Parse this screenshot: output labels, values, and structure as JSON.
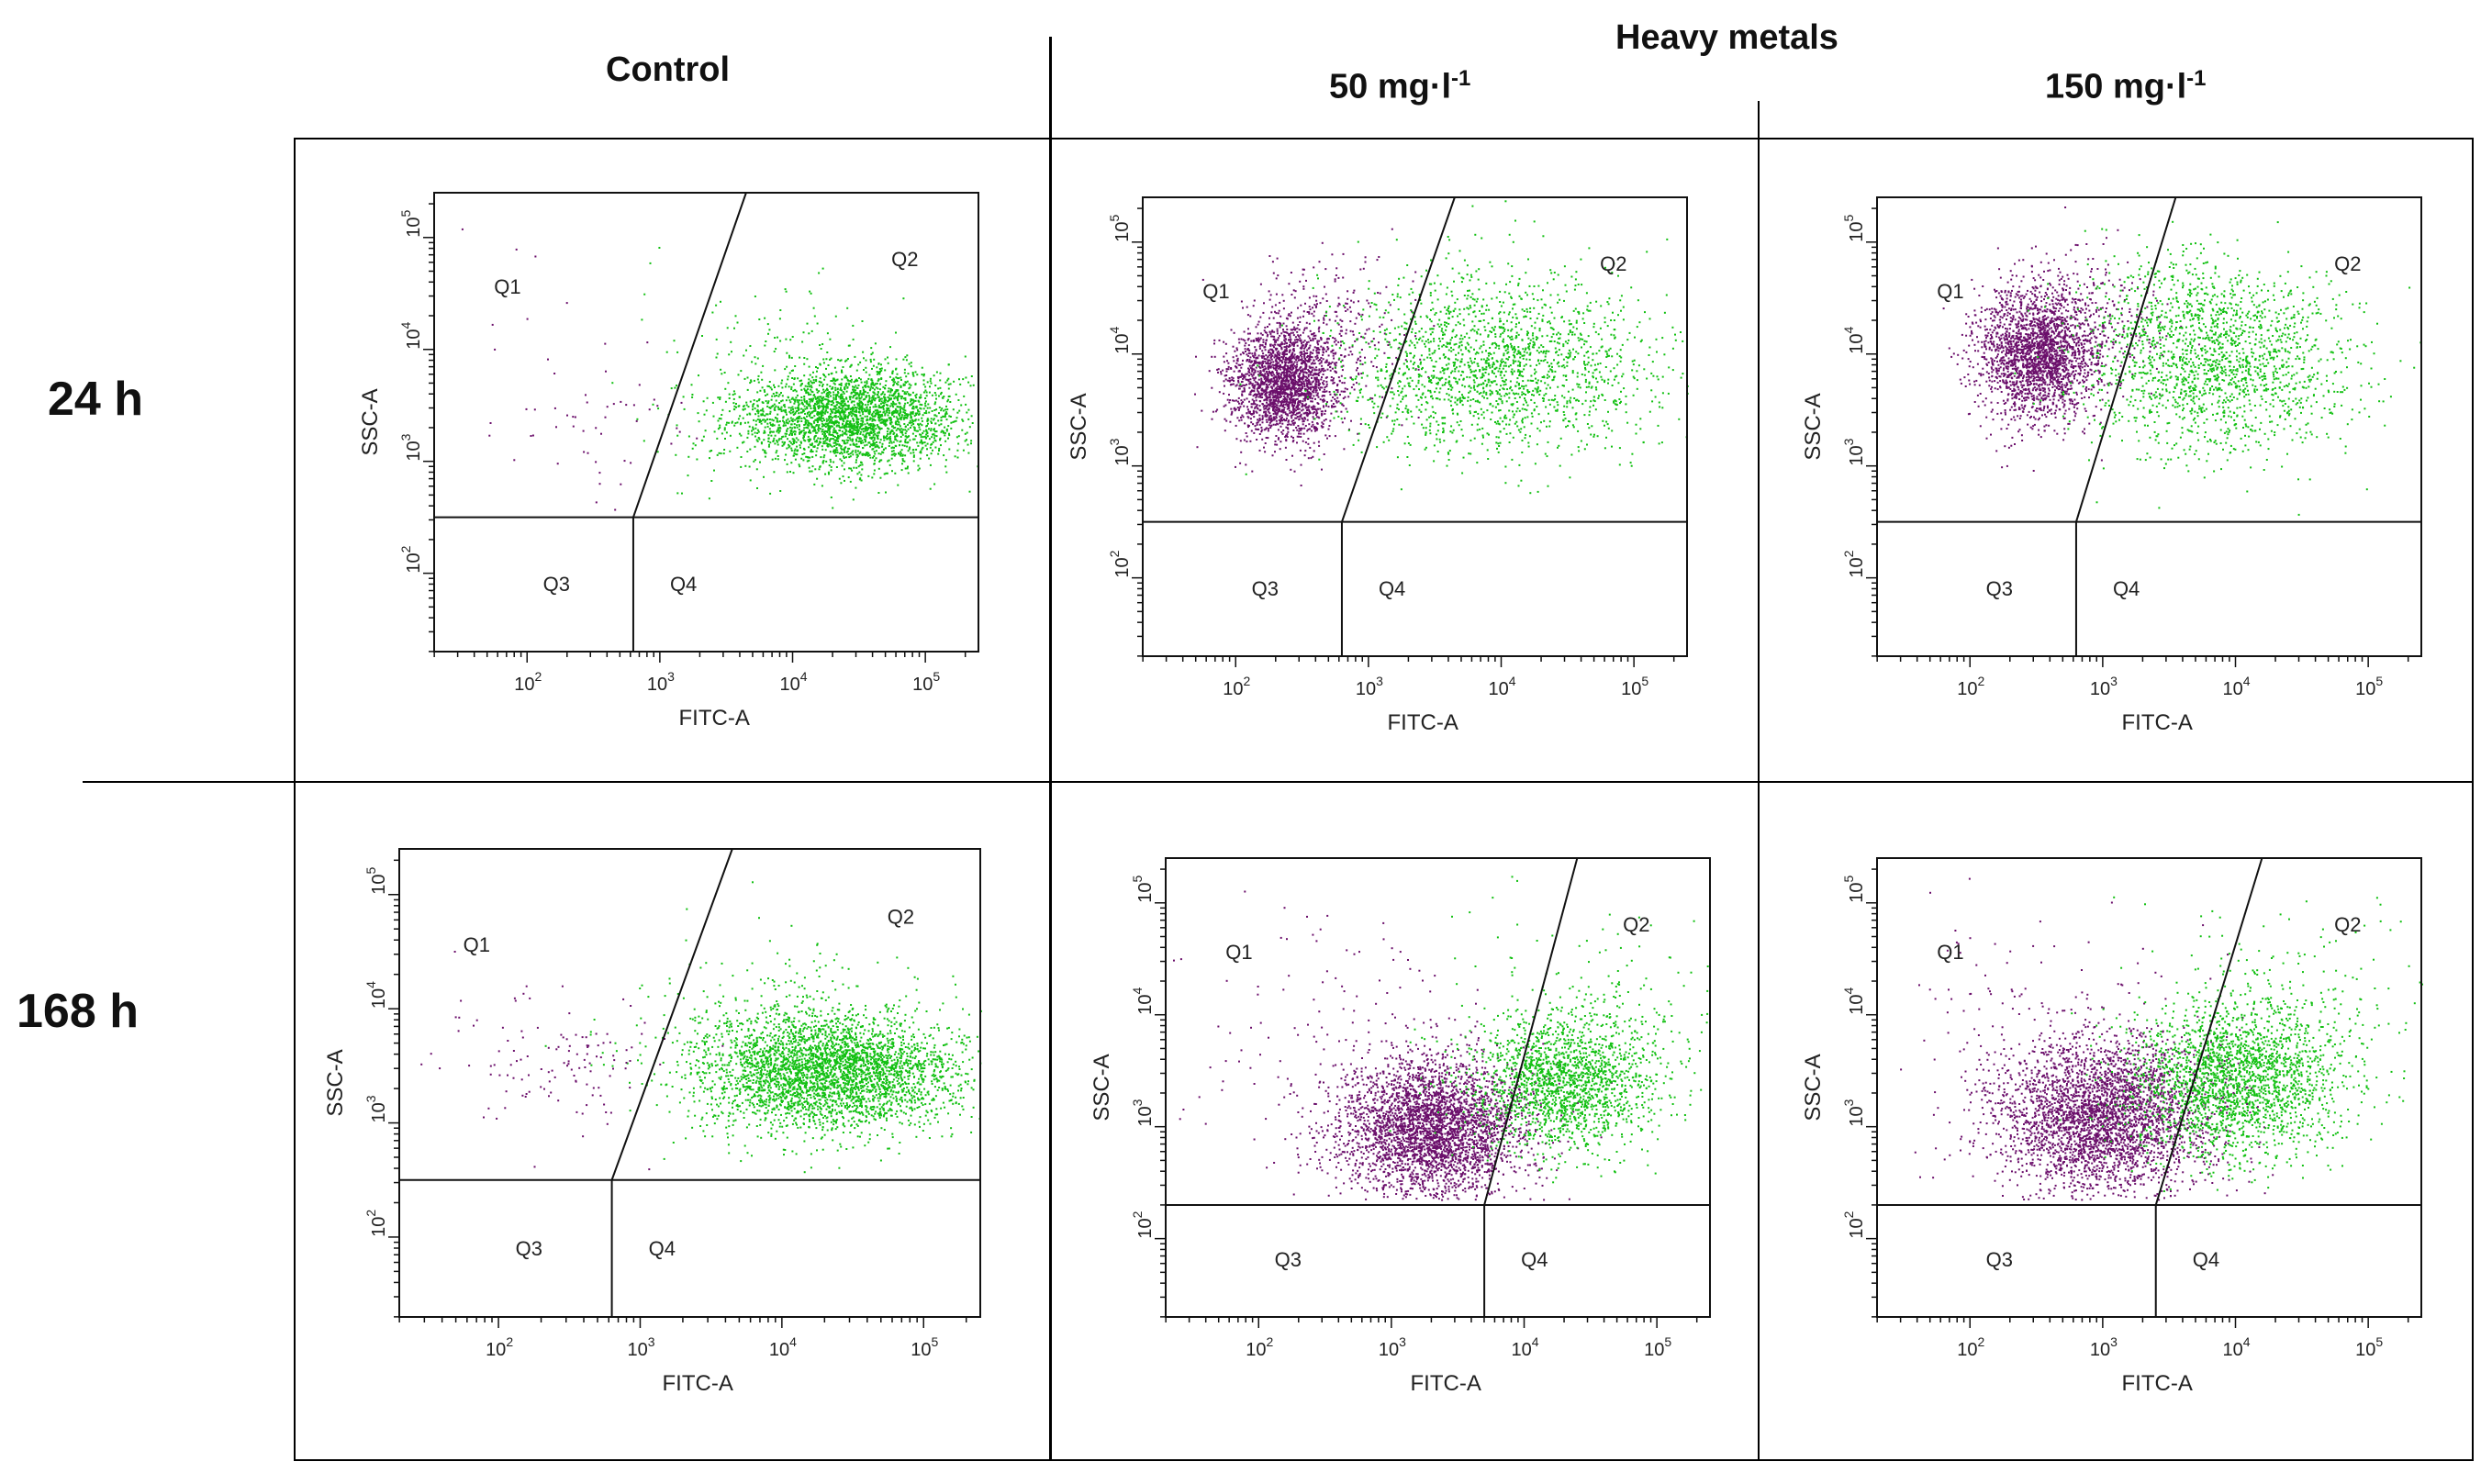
{
  "header": {
    "control": "Control",
    "heavy_metals": "Heavy metals",
    "conc_low_base": "50 mg·l",
    "conc_high_base": "150 mg·l",
    "conc_exp": "-1"
  },
  "rows": {
    "r1": "24 h",
    "r2": "168 h"
  },
  "colors": {
    "q1_population": "#6b0f6b",
    "q2_population": "#12c012",
    "axis": "#111111"
  },
  "chart_data": [
    {
      "id": "ctrl-24h",
      "type": "scatter",
      "title": "Control, 24 h",
      "xlabel": "FITC-A",
      "ylabel": "SSC-A",
      "x_log_range": [
        1.3,
        5.4
      ],
      "y_log_range": [
        1.3,
        5.4
      ],
      "x_ticks": [
        {
          "exp": 2,
          "text": "10",
          "sup": "2"
        },
        {
          "exp": 3,
          "text": "10",
          "sup": "3"
        },
        {
          "exp": 4,
          "text": "10",
          "sup": "4"
        },
        {
          "exp": 5,
          "text": "10",
          "sup": "5"
        }
      ],
      "y_ticks": [
        {
          "exp": 2,
          "text": "10",
          "sup": "2"
        },
        {
          "exp": 3,
          "text": "10",
          "sup": "3"
        },
        {
          "exp": 4,
          "text": "10",
          "sup": "4"
        },
        {
          "exp": 5,
          "text": "10",
          "sup": "5"
        }
      ],
      "quadrant_labels": [
        "Q1",
        "Q2",
        "Q3",
        "Q4"
      ],
      "gates": {
        "x_split": 2.8,
        "y_split": 2.5,
        "diag_top_x": 3.65
      },
      "populations": [
        {
          "class": "Q2",
          "color": "#12c012",
          "cx": 4.45,
          "cy": 3.4,
          "sx": 0.42,
          "sy": 0.22,
          "n": 2600,
          "xmax": 5.45
        },
        {
          "class": "Q2",
          "color": "#12c012",
          "cx": 3.9,
          "cy": 3.6,
          "sx": 0.55,
          "sy": 0.45,
          "n": 260
        },
        {
          "class": "Q1",
          "color": "#6b0f6b",
          "cx": 2.6,
          "cy": 3.4,
          "sx": 0.35,
          "sy": 0.3,
          "n": 45
        },
        {
          "class": "Q1",
          "color": "#6b0f6b",
          "cx": 1.9,
          "cy": 4.0,
          "sx": 0.3,
          "sy": 0.6,
          "n": 14
        }
      ]
    },
    {
      "id": "hm50-24h",
      "type": "scatter",
      "title": "50 mg·l-1, 24 h",
      "xlabel": "FITC-A",
      "ylabel": "SSC-A",
      "x_log_range": [
        1.3,
        5.4
      ],
      "y_log_range": [
        1.3,
        5.4
      ],
      "x_ticks": [
        {
          "exp": 2,
          "text": "10",
          "sup": "2"
        },
        {
          "exp": 3,
          "text": "10",
          "sup": "3"
        },
        {
          "exp": 4,
          "text": "10",
          "sup": "4"
        },
        {
          "exp": 5,
          "text": "10",
          "sup": "5"
        }
      ],
      "y_ticks": [
        {
          "exp": 2,
          "text": "10",
          "sup": "2"
        },
        {
          "exp": 3,
          "text": "10",
          "sup": "3"
        },
        {
          "exp": 4,
          "text": "10",
          "sup": "4"
        },
        {
          "exp": 5,
          "text": "10",
          "sup": "5"
        }
      ],
      "quadrant_labels": [
        "Q1",
        "Q2",
        "Q3",
        "Q4"
      ],
      "gates": {
        "x_split": 2.8,
        "y_split": 2.5,
        "diag_top_x": 3.65
      },
      "populations": [
        {
          "class": "Q1",
          "color": "#6b0f6b",
          "cx": 2.35,
          "cy": 3.75,
          "sx": 0.2,
          "sy": 0.25,
          "n": 2200
        },
        {
          "class": "Q1",
          "color": "#6b0f6b",
          "cx": 2.7,
          "cy": 4.2,
          "sx": 0.3,
          "sy": 0.35,
          "n": 300
        },
        {
          "class": "Q2",
          "color": "#12c012",
          "cx": 4.0,
          "cy": 3.8,
          "sx": 0.6,
          "sy": 0.35,
          "n": 1500
        },
        {
          "class": "Q2",
          "color": "#12c012",
          "cx": 3.8,
          "cy": 4.3,
          "sx": 0.5,
          "sy": 0.35,
          "n": 350
        }
      ]
    },
    {
      "id": "hm150-24h",
      "type": "scatter",
      "title": "150 mg·l-1, 24 h",
      "xlabel": "FITC-A",
      "ylabel": "SSC-A",
      "x_log_range": [
        1.3,
        5.4
      ],
      "y_log_range": [
        1.3,
        5.4
      ],
      "x_ticks": [
        {
          "exp": 2,
          "text": "10",
          "sup": "2"
        },
        {
          "exp": 3,
          "text": "10",
          "sup": "3"
        },
        {
          "exp": 4,
          "text": "10",
          "sup": "4"
        },
        {
          "exp": 5,
          "text": "10",
          "sup": "5"
        }
      ],
      "y_ticks": [
        {
          "exp": 2,
          "text": "10",
          "sup": "2"
        },
        {
          "exp": 3,
          "text": "10",
          "sup": "3"
        },
        {
          "exp": 4,
          "text": "10",
          "sup": "4"
        },
        {
          "exp": 5,
          "text": "10",
          "sup": "5"
        }
      ],
      "quadrant_labels": [
        "Q1",
        "Q2",
        "Q3",
        "Q4"
      ],
      "gates": {
        "x_split": 2.8,
        "y_split": 2.5,
        "diag_top_x": 3.55
      },
      "populations": [
        {
          "class": "Q1",
          "color": "#6b0f6b",
          "cx": 2.5,
          "cy": 4.0,
          "sx": 0.22,
          "sy": 0.3,
          "n": 2200
        },
        {
          "class": "Q1",
          "color": "#6b0f6b",
          "cx": 2.9,
          "cy": 4.3,
          "sx": 0.3,
          "sy": 0.3,
          "n": 300
        },
        {
          "class": "Q2",
          "color": "#12c012",
          "cx": 3.9,
          "cy": 3.9,
          "sx": 0.5,
          "sy": 0.4,
          "n": 1500
        },
        {
          "class": "Q2",
          "color": "#12c012",
          "cx": 3.6,
          "cy": 4.4,
          "sx": 0.4,
          "sy": 0.3,
          "n": 300
        }
      ]
    },
    {
      "id": "ctrl-168h",
      "type": "scatter",
      "title": "Control, 168 h",
      "xlabel": "FITC-A",
      "ylabel": "SSC-A",
      "x_log_range": [
        1.3,
        5.4
      ],
      "y_log_range": [
        1.3,
        5.4
      ],
      "x_ticks": [
        {
          "exp": 2,
          "text": "10",
          "sup": "2"
        },
        {
          "exp": 3,
          "text": "10",
          "sup": "3"
        },
        {
          "exp": 4,
          "text": "10",
          "sup": "4"
        },
        {
          "exp": 5,
          "text": "10",
          "sup": "5"
        }
      ],
      "y_ticks": [
        {
          "exp": 2,
          "text": "10",
          "sup": "2"
        },
        {
          "exp": 3,
          "text": "10",
          "sup": "3"
        },
        {
          "exp": 4,
          "text": "10",
          "sup": "4"
        },
        {
          "exp": 5,
          "text": "10",
          "sup": "5"
        }
      ],
      "quadrant_labels": [
        "Q1",
        "Q2",
        "Q3",
        "Q4"
      ],
      "gates": {
        "x_split": 2.8,
        "y_split": 2.5,
        "diag_top_x": 3.65
      },
      "populations": [
        {
          "class": "Q2",
          "color": "#12c012",
          "cx": 4.35,
          "cy": 3.45,
          "sx": 0.45,
          "sy": 0.25,
          "n": 3200,
          "xmax": 5.45
        },
        {
          "class": "Q2",
          "color": "#12c012",
          "cx": 3.9,
          "cy": 3.7,
          "sx": 0.5,
          "sy": 0.45,
          "n": 400
        },
        {
          "class": "Q1",
          "color": "#6b0f6b",
          "cx": 2.5,
          "cy": 3.5,
          "sx": 0.4,
          "sy": 0.3,
          "n": 110
        },
        {
          "class": "Q1",
          "color": "#6b0f6b",
          "cx": 1.9,
          "cy": 3.9,
          "sx": 0.3,
          "sy": 0.5,
          "n": 15
        }
      ]
    },
    {
      "id": "hm50-168h",
      "type": "scatter",
      "title": "50 mg·l-1, 168 h",
      "xlabel": "FITC-A",
      "ylabel": "SSC-A",
      "x_log_range": [
        1.3,
        5.4
      ],
      "y_log_range": [
        1.3,
        5.4
      ],
      "x_ticks": [
        {
          "exp": 2,
          "text": "10",
          "sup": "2"
        },
        {
          "exp": 3,
          "text": "10",
          "sup": "3"
        },
        {
          "exp": 4,
          "text": "10",
          "sup": "4"
        },
        {
          "exp": 5,
          "text": "10",
          "sup": "5"
        }
      ],
      "y_ticks": [
        {
          "exp": 2,
          "text": "10",
          "sup": "2"
        },
        {
          "exp": 3,
          "text": "10",
          "sup": "3"
        },
        {
          "exp": 4,
          "text": "10",
          "sup": "4"
        },
        {
          "exp": 5,
          "text": "10",
          "sup": "5"
        }
      ],
      "quadrant_labels": [
        "Q1",
        "Q2",
        "Q3",
        "Q4"
      ],
      "gates": {
        "x_split": 3.7,
        "y_split": 2.3,
        "diag_top_x": 4.4
      },
      "populations": [
        {
          "class": "Q1",
          "color": "#6b0f6b",
          "cx": 3.3,
          "cy": 3.0,
          "sx": 0.35,
          "sy": 0.3,
          "n": 3300
        },
        {
          "class": "Q2",
          "color": "#12c012",
          "cx": 4.3,
          "cy": 3.4,
          "sx": 0.35,
          "sy": 0.3,
          "n": 1700
        },
        {
          "class": "Q1",
          "color": "#6b0f6b",
          "cx": 2.7,
          "cy": 3.6,
          "sx": 0.6,
          "sy": 0.6,
          "n": 160
        },
        {
          "class": "Q2",
          "color": "#12c012",
          "cx": 4.5,
          "cy": 3.9,
          "sx": 0.5,
          "sy": 0.45,
          "n": 200
        }
      ]
    },
    {
      "id": "hm150-168h",
      "type": "scatter",
      "title": "150 mg·l-1, 168 h",
      "xlabel": "FITC-A",
      "ylabel": "SSC-A",
      "x_log_range": [
        1.3,
        5.4
      ],
      "y_log_range": [
        1.3,
        5.4
      ],
      "x_ticks": [
        {
          "exp": 2,
          "text": "10",
          "sup": "2"
        },
        {
          "exp": 3,
          "text": "10",
          "sup": "3"
        },
        {
          "exp": 4,
          "text": "10",
          "sup": "4"
        },
        {
          "exp": 5,
          "text": "10",
          "sup": "5"
        }
      ],
      "y_ticks": [
        {
          "exp": 2,
          "text": "10",
          "sup": "2"
        },
        {
          "exp": 3,
          "text": "10",
          "sup": "3"
        },
        {
          "exp": 4,
          "text": "10",
          "sup": "4"
        },
        {
          "exp": 5,
          "text": "10",
          "sup": "5"
        }
      ],
      "quadrant_labels": [
        "Q1",
        "Q2",
        "Q3",
        "Q4"
      ],
      "gates": {
        "x_split": 3.4,
        "y_split": 2.3,
        "diag_top_x": 4.2
      },
      "populations": [
        {
          "class": "Q1",
          "color": "#6b0f6b",
          "cx": 3.0,
          "cy": 3.1,
          "sx": 0.4,
          "sy": 0.35,
          "n": 3300
        },
        {
          "class": "Q2",
          "color": "#12c012",
          "cx": 4.0,
          "cy": 3.4,
          "sx": 0.4,
          "sy": 0.35,
          "n": 2100
        },
        {
          "class": "Q1",
          "color": "#6b0f6b",
          "cx": 2.6,
          "cy": 3.8,
          "sx": 0.6,
          "sy": 0.6,
          "n": 160
        },
        {
          "class": "Q2",
          "color": "#12c012",
          "cx": 4.4,
          "cy": 4.0,
          "sx": 0.6,
          "sy": 0.5,
          "n": 250
        }
      ]
    }
  ]
}
